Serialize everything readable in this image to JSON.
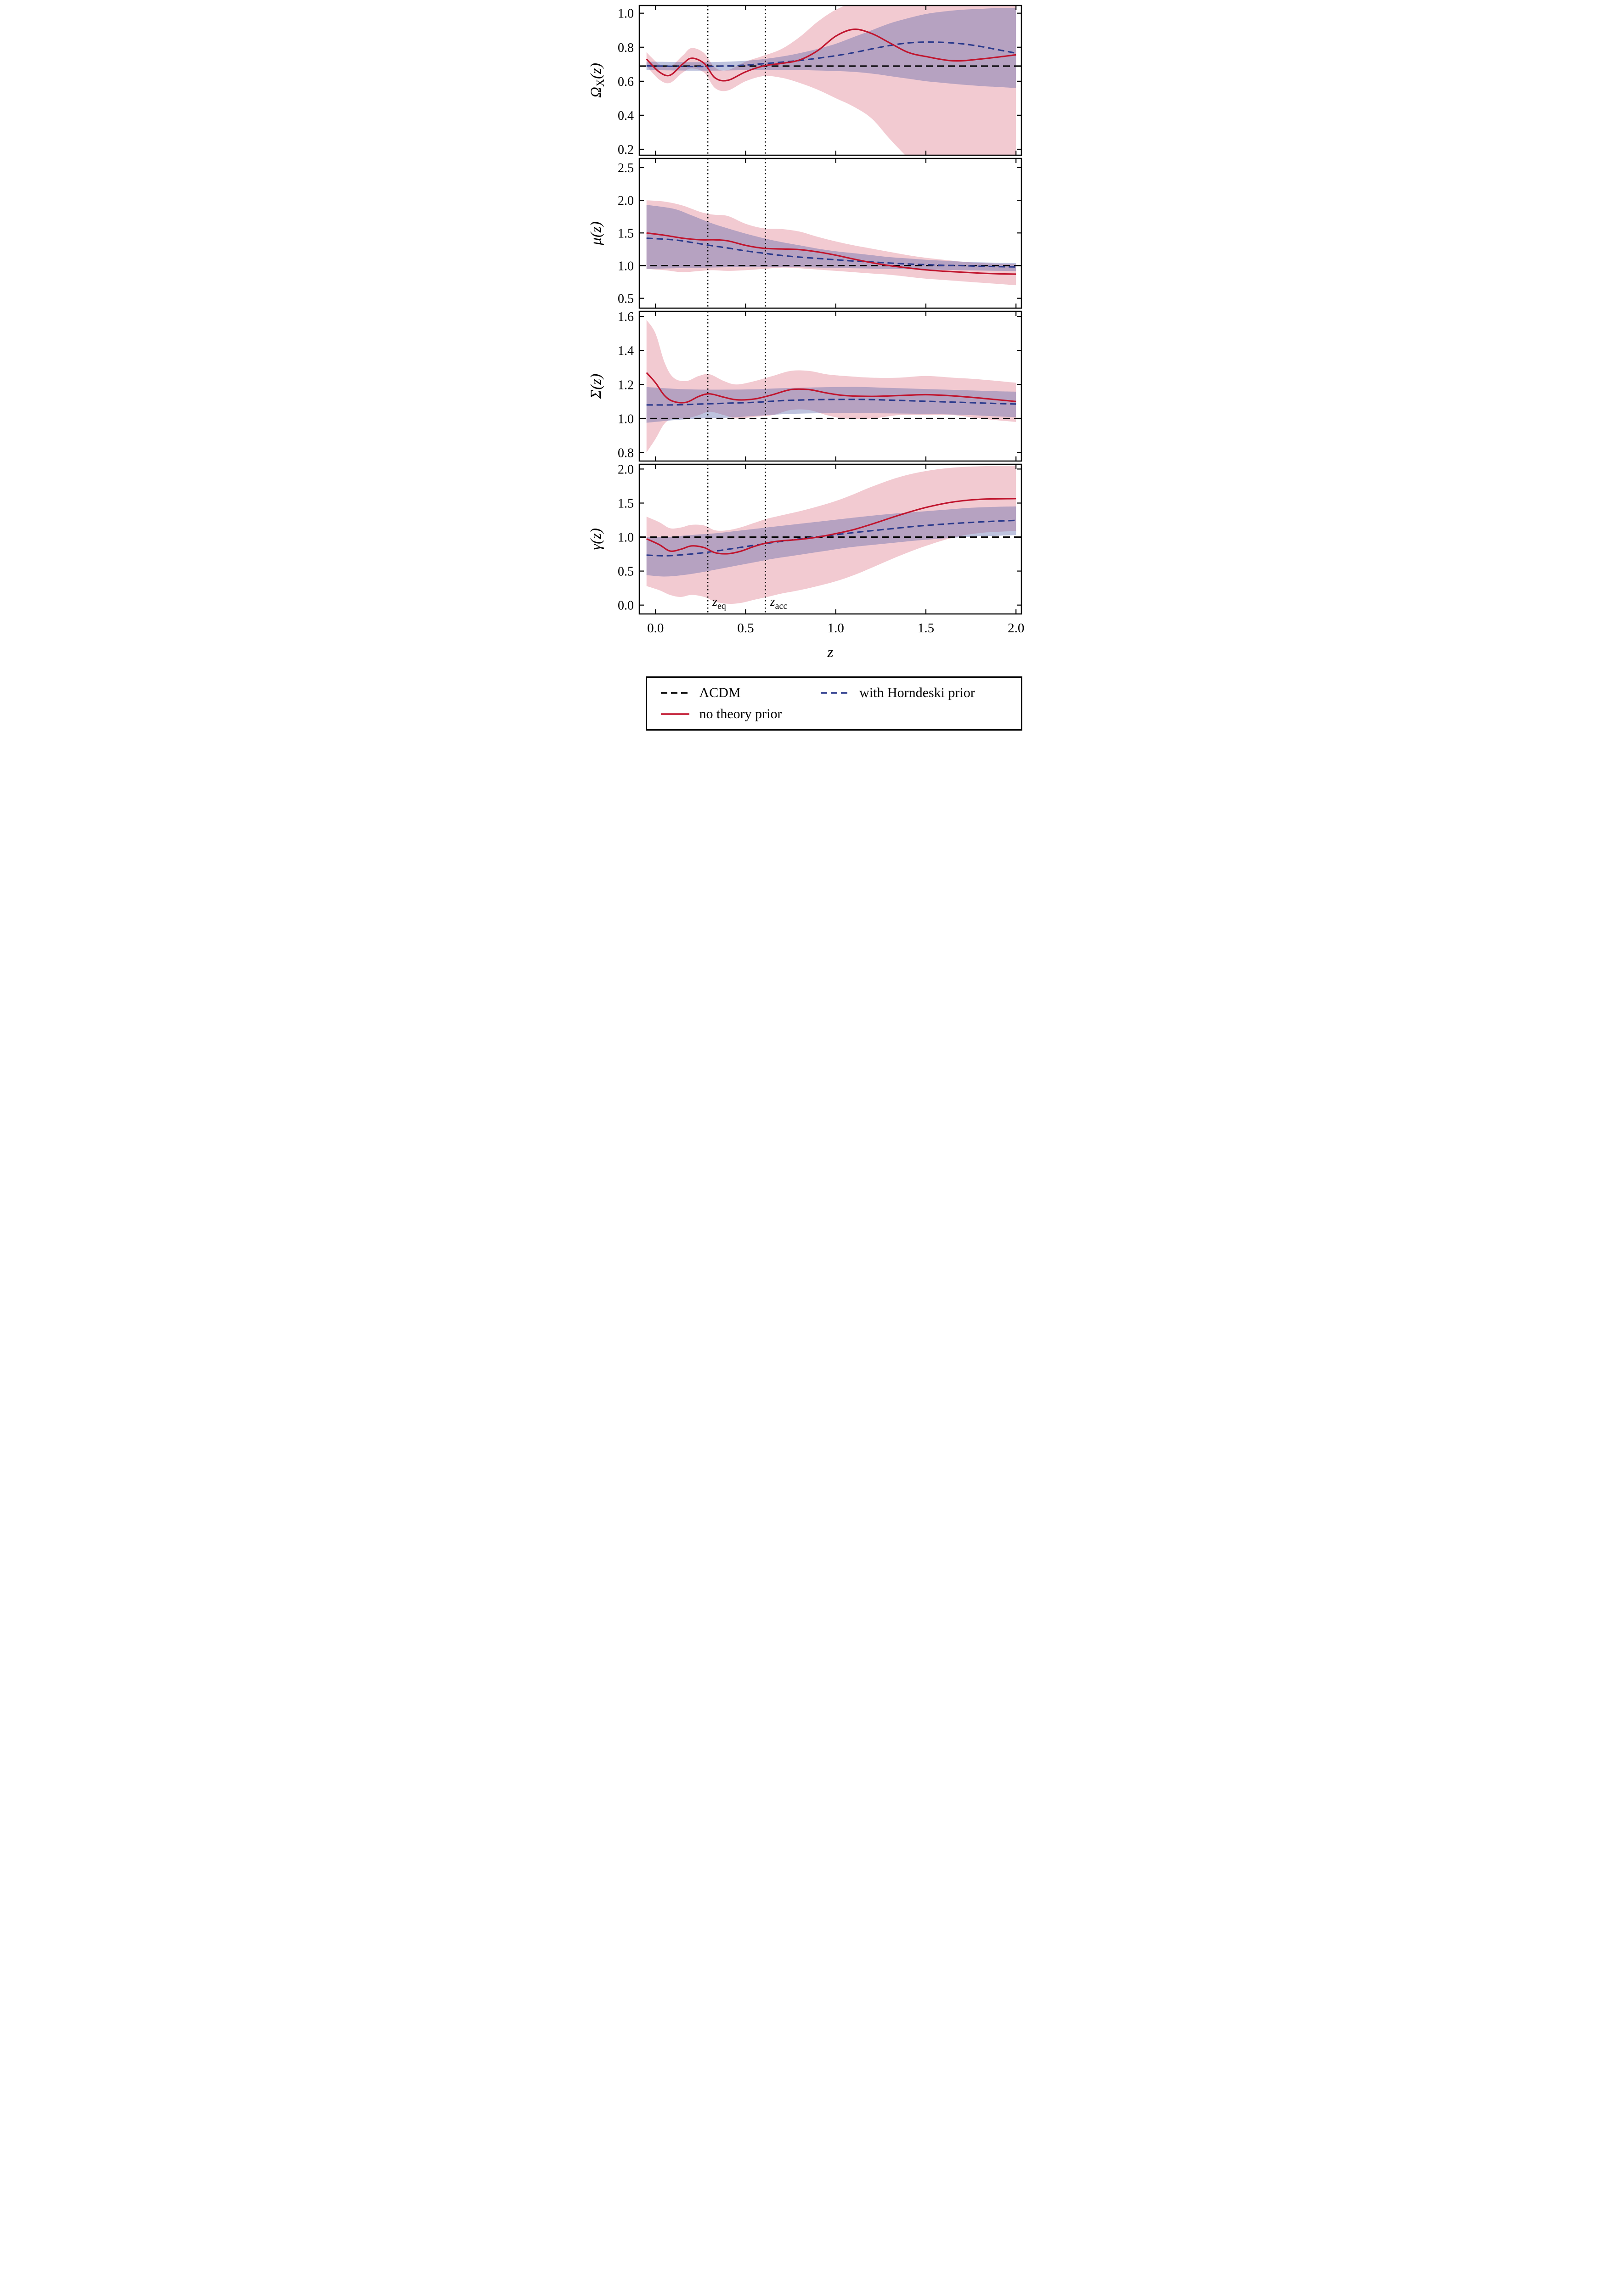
{
  "chart_data": {
    "type": "line",
    "title": "",
    "xlabel": "z",
    "xlim": [
      -0.09,
      2.03
    ],
    "xticks": [
      0.0,
      0.5,
      1.0,
      1.5,
      2.0
    ],
    "grid": false,
    "legend_position": "bottom",
    "vlines": [
      {
        "x": 0.29,
        "label": "z_eq"
      },
      {
        "x": 0.61,
        "label": "z_acc"
      }
    ],
    "legend": {
      "lcdm": "ΛCDM",
      "no_prior": "no theory prior",
      "horndeski": "with Horndeski prior"
    },
    "colors": {
      "black": "#000000",
      "red": "#c0152e",
      "red_band": "rgba(199,32,64,0.24)",
      "navy": "#2b3a8c",
      "navy_band": "rgba(84,96,168,0.38)"
    },
    "panels": [
      {
        "ylabel": "Ω_X(z)",
        "ylim": [
          0.165,
          1.045
        ],
        "yticks": [
          0.2,
          0.4,
          0.6,
          0.8,
          1.0
        ],
        "lcdm": 0.689,
        "no_prior": {
          "x": [
            -0.05,
            0.02,
            0.08,
            0.15,
            0.2,
            0.27,
            0.33,
            0.4,
            0.5,
            0.6,
            0.7,
            0.8,
            0.9,
            1.0,
            1.1,
            1.2,
            1.3,
            1.4,
            1.5,
            1.65,
            1.8,
            2.0
          ],
          "y": [
            0.73,
            0.655,
            0.635,
            0.7,
            0.735,
            0.705,
            0.62,
            0.605,
            0.655,
            0.69,
            0.705,
            0.725,
            0.78,
            0.865,
            0.905,
            0.88,
            0.825,
            0.77,
            0.745,
            0.72,
            0.73,
            0.755
          ],
          "lo": [
            0.69,
            0.61,
            0.59,
            0.65,
            0.675,
            0.65,
            0.56,
            0.545,
            0.6,
            0.63,
            0.62,
            0.59,
            0.55,
            0.5,
            0.45,
            0.38,
            0.26,
            0.15,
            0.06,
            0.0,
            -0.05,
            -0.05
          ],
          "hi": [
            0.77,
            0.7,
            0.685,
            0.75,
            0.795,
            0.765,
            0.68,
            0.665,
            0.715,
            0.75,
            0.79,
            0.86,
            0.95,
            1.02,
            1.06,
            1.06,
            1.06,
            1.06,
            1.06,
            1.06,
            1.06,
            1.06
          ]
        },
        "horndeski": {
          "x": [
            -0.05,
            0.1,
            0.2,
            0.3,
            0.4,
            0.5,
            0.6,
            0.7,
            0.8,
            0.9,
            1.0,
            1.1,
            1.2,
            1.3,
            1.4,
            1.5,
            1.6,
            1.7,
            1.8,
            1.9,
            2.0
          ],
          "y": [
            0.69,
            0.688,
            0.687,
            0.687,
            0.69,
            0.695,
            0.703,
            0.712,
            0.722,
            0.735,
            0.75,
            0.768,
            0.79,
            0.81,
            0.825,
            0.83,
            0.828,
            0.82,
            0.805,
            0.785,
            0.765
          ],
          "lo": [
            0.665,
            0.663,
            0.662,
            0.662,
            0.663,
            0.665,
            0.665,
            0.665,
            0.665,
            0.663,
            0.66,
            0.655,
            0.645,
            0.63,
            0.615,
            0.6,
            0.59,
            0.58,
            0.572,
            0.566,
            0.56
          ],
          "hi": [
            0.715,
            0.713,
            0.712,
            0.712,
            0.715,
            0.72,
            0.73,
            0.745,
            0.765,
            0.79,
            0.82,
            0.86,
            0.9,
            0.94,
            0.97,
            0.995,
            1.01,
            1.02,
            1.025,
            1.03,
            1.03
          ]
        }
      },
      {
        "ylabel": "μ(z)",
        "ylim": [
          0.35,
          2.64
        ],
        "yticks": [
          0.5,
          1.0,
          1.5,
          2.0,
          2.5
        ],
        "lcdm": 1.0,
        "no_prior": {
          "x": [
            -0.05,
            0.05,
            0.15,
            0.25,
            0.32,
            0.4,
            0.5,
            0.6,
            0.7,
            0.8,
            0.9,
            1.0,
            1.1,
            1.2,
            1.3,
            1.4,
            1.5,
            1.6,
            1.7,
            1.8,
            1.9,
            2.0
          ],
          "y": [
            1.5,
            1.465,
            1.42,
            1.395,
            1.395,
            1.38,
            1.31,
            1.265,
            1.255,
            1.245,
            1.21,
            1.16,
            1.1,
            1.045,
            1.0,
            0.965,
            0.935,
            0.915,
            0.9,
            0.885,
            0.875,
            0.87
          ],
          "lo": [
            0.95,
            0.93,
            0.9,
            0.92,
            0.93,
            0.92,
            0.93,
            0.95,
            0.97,
            0.96,
            0.94,
            0.92,
            0.9,
            0.88,
            0.86,
            0.83,
            0.8,
            0.78,
            0.76,
            0.74,
            0.72,
            0.7
          ],
          "hi": [
            2.0,
            1.98,
            1.92,
            1.82,
            1.78,
            1.76,
            1.64,
            1.57,
            1.56,
            1.52,
            1.44,
            1.37,
            1.31,
            1.26,
            1.21,
            1.16,
            1.12,
            1.09,
            1.06,
            1.04,
            1.03,
            1.02
          ]
        },
        "horndeski": {
          "x": [
            -0.05,
            0.1,
            0.2,
            0.3,
            0.4,
            0.5,
            0.6,
            0.7,
            0.8,
            0.9,
            1.0,
            1.1,
            1.2,
            1.3,
            1.4,
            1.5,
            1.6,
            1.7,
            1.8,
            1.9,
            2.0
          ],
          "y": [
            1.42,
            1.395,
            1.355,
            1.31,
            1.27,
            1.225,
            1.19,
            1.155,
            1.13,
            1.11,
            1.09,
            1.07,
            1.055,
            1.04,
            1.025,
            1.015,
            1.005,
            1.0,
            0.99,
            0.985,
            0.98
          ],
          "lo": [
            0.95,
            0.96,
            0.965,
            0.97,
            0.975,
            0.98,
            0.98,
            0.98,
            0.975,
            0.97,
            0.965,
            0.96,
            0.955,
            0.95,
            0.945,
            0.94,
            0.935,
            0.93,
            0.925,
            0.92,
            0.915
          ],
          "hi": [
            1.93,
            1.87,
            1.77,
            1.66,
            1.57,
            1.49,
            1.42,
            1.36,
            1.31,
            1.26,
            1.22,
            1.19,
            1.16,
            1.13,
            1.11,
            1.09,
            1.075,
            1.06,
            1.05,
            1.045,
            1.04
          ]
        }
      },
      {
        "ylabel": "Σ(z)",
        "ylim": [
          0.75,
          1.63
        ],
        "yticks": [
          0.8,
          1.0,
          1.2,
          1.4,
          1.6
        ],
        "lcdm": 1.0,
        "no_prior": {
          "x": [
            -0.05,
            0.0,
            0.05,
            0.1,
            0.17,
            0.24,
            0.3,
            0.38,
            0.45,
            0.55,
            0.65,
            0.75,
            0.85,
            0.95,
            1.05,
            1.2,
            1.35,
            1.5,
            1.65,
            1.8,
            2.0
          ],
          "y": [
            1.27,
            1.21,
            1.135,
            1.1,
            1.095,
            1.13,
            1.145,
            1.125,
            1.11,
            1.115,
            1.14,
            1.17,
            1.17,
            1.15,
            1.135,
            1.13,
            1.135,
            1.14,
            1.133,
            1.12,
            1.1
          ],
          "lo": [
            0.8,
            0.88,
            0.97,
            1.0,
            1.0,
            1.02,
            1.04,
            1.02,
            1.0,
            1.01,
            1.02,
            1.05,
            1.05,
            1.02,
            1.0,
            1.0,
            1.02,
            1.02,
            1.02,
            1.0,
            0.98
          ],
          "hi": [
            1.58,
            1.5,
            1.33,
            1.24,
            1.22,
            1.25,
            1.26,
            1.22,
            1.2,
            1.22,
            1.25,
            1.28,
            1.28,
            1.26,
            1.25,
            1.24,
            1.24,
            1.25,
            1.24,
            1.23,
            1.21
          ]
        },
        "horndeski": {
          "x": [
            -0.05,
            0.1,
            0.25,
            0.4,
            0.55,
            0.7,
            0.85,
            1.0,
            1.15,
            1.3,
            1.45,
            1.6,
            1.75,
            1.9,
            2.0
          ],
          "y": [
            1.08,
            1.08,
            1.085,
            1.09,
            1.095,
            1.105,
            1.11,
            1.112,
            1.112,
            1.108,
            1.103,
            1.098,
            1.093,
            1.088,
            1.085
          ],
          "lo": [
            0.975,
            0.99,
            1.0,
            1.005,
            1.015,
            1.025,
            1.03,
            1.032,
            1.032,
            1.03,
            1.028,
            1.025,
            1.02,
            1.012,
            1.008
          ],
          "hi": [
            1.185,
            1.175,
            1.17,
            1.17,
            1.172,
            1.178,
            1.182,
            1.185,
            1.185,
            1.18,
            1.175,
            1.17,
            1.165,
            1.16,
            1.158
          ]
        }
      },
      {
        "ylabel": "γ(z)",
        "ylim": [
          -0.13,
          2.07
        ],
        "yticks": [
          0.0,
          0.5,
          1.0,
          1.5,
          2.0
        ],
        "lcdm": 1.0,
        "no_prior": {
          "x": [
            -0.05,
            0.02,
            0.08,
            0.14,
            0.2,
            0.27,
            0.33,
            0.4,
            0.47,
            0.55,
            0.62,
            0.7,
            0.8,
            0.9,
            1.0,
            1.1,
            1.2,
            1.35,
            1.5,
            1.65,
            1.8,
            2.0
          ],
          "y": [
            0.975,
            0.89,
            0.795,
            0.82,
            0.87,
            0.845,
            0.77,
            0.755,
            0.79,
            0.865,
            0.915,
            0.945,
            0.965,
            1.0,
            1.05,
            1.11,
            1.19,
            1.32,
            1.435,
            1.515,
            1.555,
            1.565
          ],
          "lo": [
            0.28,
            0.22,
            0.15,
            0.12,
            0.15,
            0.12,
            0.05,
            0.02,
            0.03,
            0.08,
            0.12,
            0.17,
            0.22,
            0.28,
            0.35,
            0.44,
            0.55,
            0.72,
            0.87,
            0.99,
            1.06,
            1.09
          ],
          "hi": [
            1.3,
            1.22,
            1.13,
            1.14,
            1.18,
            1.17,
            1.1,
            1.1,
            1.14,
            1.21,
            1.27,
            1.32,
            1.38,
            1.45,
            1.53,
            1.63,
            1.74,
            1.88,
            1.97,
            2.02,
            2.04,
            2.05
          ]
        },
        "horndeski": {
          "x": [
            -0.05,
            0.05,
            0.15,
            0.25,
            0.35,
            0.45,
            0.55,
            0.65,
            0.75,
            0.85,
            0.95,
            1.05,
            1.15,
            1.3,
            1.45,
            1.6,
            1.75,
            1.9,
            2.0
          ],
          "y": [
            0.735,
            0.725,
            0.74,
            0.765,
            0.8,
            0.84,
            0.88,
            0.92,
            0.955,
            0.99,
            1.02,
            1.05,
            1.08,
            1.12,
            1.16,
            1.19,
            1.215,
            1.235,
            1.245
          ],
          "lo": [
            0.44,
            0.42,
            0.44,
            0.48,
            0.53,
            0.58,
            0.63,
            0.68,
            0.72,
            0.76,
            0.8,
            0.84,
            0.87,
            0.91,
            0.95,
            0.98,
            1.005,
            1.02,
            1.03
          ],
          "hi": [
            1.0,
            1.0,
            1.02,
            1.04,
            1.06,
            1.09,
            1.12,
            1.15,
            1.18,
            1.21,
            1.24,
            1.27,
            1.3,
            1.34,
            1.37,
            1.4,
            1.43,
            1.445,
            1.45
          ]
        }
      }
    ]
  }
}
